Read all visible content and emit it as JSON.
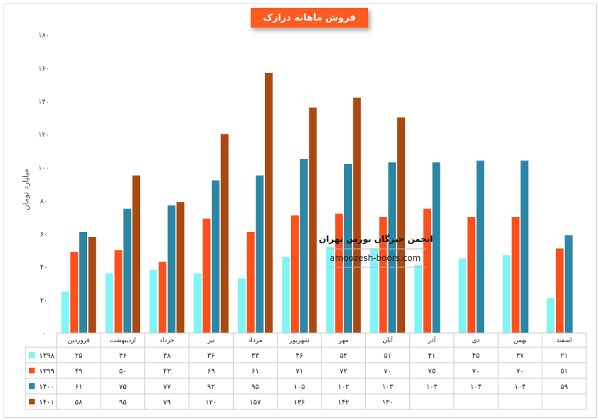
{
  "chart_data": {
    "type": "bar",
    "title": "فروش ماهانه درازک",
    "ylabel": "میلیارد تومان",
    "ylim": [
      0,
      180
    ],
    "yticks": [
      "۰",
      "۲۰",
      "۴۰",
      "۶۰",
      "۸۰",
      "۱۰۰",
      "۱۲۰",
      "۱۴۰",
      "۱۶۰",
      "۱۸۰"
    ],
    "grid": false,
    "legend": "data-table",
    "categories": [
      "فروردین",
      "اردیبهشت",
      "خرداد",
      "تیر",
      "مرداد",
      "شهریور",
      "مهر",
      "آبان",
      "آذر",
      "دی",
      "بهمن",
      "اسفند"
    ],
    "series": [
      {
        "name": "۱۳۹۸",
        "color": "#7ff5f5",
        "values": [
          25,
          36,
          38,
          36,
          33,
          46,
          52,
          51,
          41,
          45,
          47,
          21
        ],
        "labels": [
          "۲۵",
          "۳۶",
          "۳۸",
          "۳۶",
          "۳۳",
          "۴۶",
          "۵۲",
          "۵۱",
          "۴۱",
          "۴۵",
          "۴۷",
          "۲۱"
        ]
      },
      {
        "name": "۱۳۹۹",
        "color": "#ff4f1a",
        "values": [
          49,
          50,
          43,
          69,
          61,
          71,
          72,
          70,
          75,
          70,
          70,
          51
        ],
        "labels": [
          "۴۹",
          "۵۰",
          "۴۳",
          "۶۹",
          "۶۱",
          "۷۱",
          "۷۲",
          "۷۰",
          "۷۵",
          "۷۰",
          "۷۰",
          "۵۱"
        ]
      },
      {
        "name": "۱۴۰۰",
        "color": "#2b87a3",
        "values": [
          61,
          75,
          77,
          92,
          95,
          105,
          102,
          103,
          103,
          104,
          104,
          59
        ],
        "labels": [
          "۶۱",
          "۷۵",
          "۷۷",
          "۹۲",
          "۹۵",
          "۱۰۵",
          "۱۰۲",
          "۱۰۳",
          "۱۰۳",
          "۱۰۴",
          "۱۰۴",
          "۵۹"
        ]
      },
      {
        "name": "۱۴۰۱",
        "color": "#a84a12",
        "values": [
          58,
          95,
          79,
          120,
          157,
          136,
          142,
          130,
          null,
          null,
          null,
          null
        ],
        "labels": [
          "۵۸",
          "۹۵",
          "۷۹",
          "۱۲۰",
          "۱۵۷",
          "۱۳۶",
          "۱۴۲",
          "۱۳۰",
          "",
          "",
          "",
          ""
        ]
      }
    ]
  },
  "watermark": {
    "title": "انجمن خبرگان بورس تهران",
    "url": "amoozesh-boors.com"
  }
}
